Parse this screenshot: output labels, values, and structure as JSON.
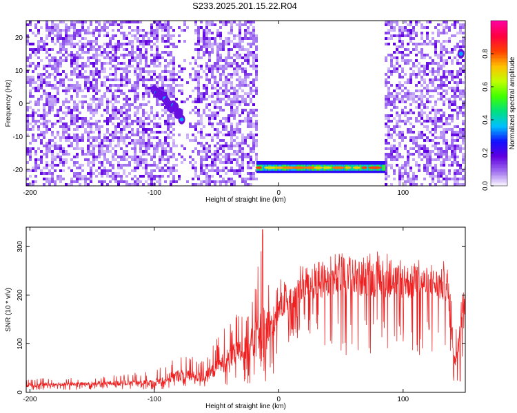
{
  "title": "S233.2025.201.15.22.R04",
  "chart_data": [
    {
      "type": "heatmap",
      "xlabel": "Height of straight line (km)",
      "ylabel": "Frequency (Hz)",
      "xlim": [
        -203,
        150
      ],
      "ylim": [
        -25,
        25
      ],
      "x_ticks": [
        -200,
        -100,
        0,
        100
      ],
      "y_ticks": [
        20,
        10,
        0,
        -10,
        -20
      ],
      "colorbar": {
        "label": "Normalized spectral amplitude",
        "range": [
          0,
          1
        ],
        "ticks": [
          "0.0",
          "0.2",
          "0.4",
          "0.6",
          "0.8"
        ],
        "colors": [
          "#ffffff",
          "#a070f0",
          "#6000e0",
          "#1010ff",
          "#00c0ff",
          "#00e080",
          "#40ff00",
          "#c0ff00",
          "#ffc000",
          "#ff4000",
          "#ff0040",
          "#ff00a0"
        ]
      },
      "blank_region_x": [
        -18,
        85
      ],
      "features": [
        {
          "label": "carrier line",
          "x_range": [
            -18,
            85
          ],
          "frequency": -19.5,
          "amplitude_range": [
            0.3,
            0.95
          ]
        },
        {
          "label": "signal near -100 km",
          "x_range": [
            -100,
            -78
          ],
          "frequency_range": [
            -4,
            4
          ],
          "amplitude": 0.35
        },
        {
          "label": "signal at right edge",
          "x_range": [
            143,
            150
          ],
          "frequency": 15,
          "amplitude": 0.35
        }
      ]
    },
    {
      "type": "line",
      "xlabel": "Height of straight line (km)",
      "ylabel": "SNR (10 * v/v)",
      "xlim": [
        -203,
        150
      ],
      "ylim": [
        0,
        340
      ],
      "x_ticks": [
        -200,
        -100,
        0,
        100
      ],
      "y_ticks": [
        0,
        100,
        200,
        300
      ],
      "color": "#ee2222",
      "series_envelope": [
        {
          "x": -203,
          "y_low": 5,
          "y_mean": 15,
          "y_high": 30
        },
        {
          "x": -150,
          "y_low": 5,
          "y_mean": 18,
          "y_high": 30
        },
        {
          "x": -100,
          "y_low": 5,
          "y_mean": 20,
          "y_high": 45
        },
        {
          "x": -80,
          "y_low": 10,
          "y_mean": 35,
          "y_high": 85
        },
        {
          "x": -60,
          "y_low": 10,
          "y_mean": 30,
          "y_high": 70
        },
        {
          "x": -40,
          "y_low": 15,
          "y_mean": 70,
          "y_high": 150
        },
        {
          "x": -25,
          "y_low": 15,
          "y_mean": 90,
          "y_high": 175
        },
        {
          "x": -13,
          "y_low": 25,
          "y_mean": 120,
          "y_high": 335
        },
        {
          "x": -5,
          "y_low": 15,
          "y_mean": 140,
          "y_high": 210
        },
        {
          "x": 0,
          "y_low": 80,
          "y_mean": 175,
          "y_high": 230
        },
        {
          "x": 20,
          "y_low": 120,
          "y_mean": 215,
          "y_high": 265
        },
        {
          "x": 40,
          "y_low": 80,
          "y_mean": 230,
          "y_high": 285
        },
        {
          "x": 80,
          "y_low": 70,
          "y_mean": 235,
          "y_high": 290
        },
        {
          "x": 110,
          "y_low": 75,
          "y_mean": 225,
          "y_high": 275
        },
        {
          "x": 135,
          "y_low": 80,
          "y_mean": 220,
          "y_high": 270
        },
        {
          "x": 142,
          "y_low": 5,
          "y_mean": 60,
          "y_high": 120
        },
        {
          "x": 146,
          "y_low": 20,
          "y_mean": 140,
          "y_high": 190
        },
        {
          "x": 150,
          "y_low": 150,
          "y_mean": 200,
          "y_high": 230
        }
      ]
    }
  ]
}
